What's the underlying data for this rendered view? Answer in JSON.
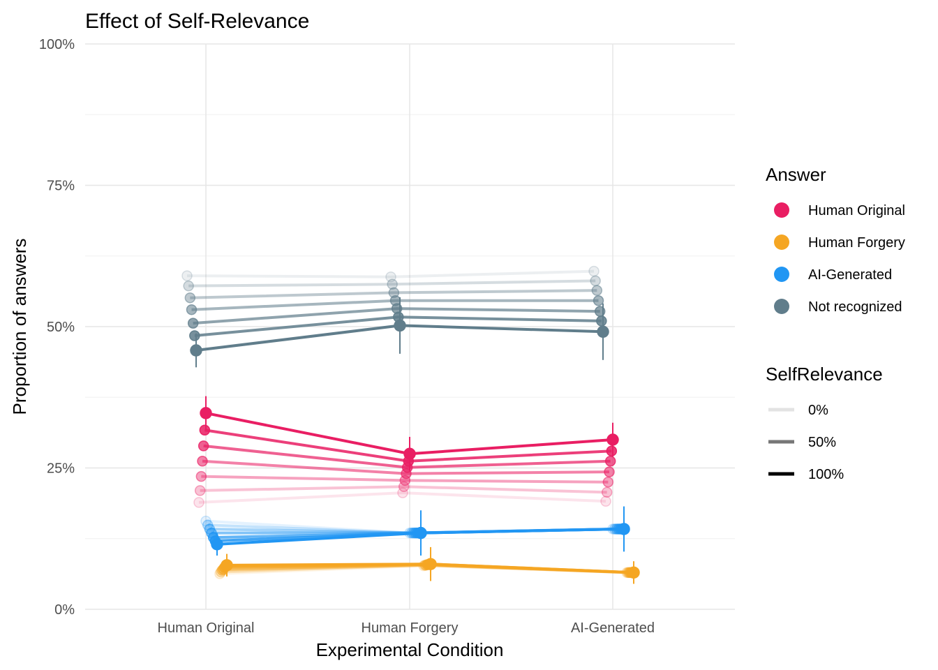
{
  "chart_data": {
    "type": "line",
    "title": "Effect of Self-Relevance",
    "xlabel": "Experimental Condition",
    "ylabel": "Proportion of answers",
    "categories": [
      "Human Original",
      "Human Forgery",
      "AI-Generated"
    ],
    "ylim": [
      0,
      1
    ],
    "yticks": [
      0,
      0.25,
      0.5,
      0.75,
      1.0
    ],
    "ytick_labels": [
      "0%",
      "25%",
      "50%",
      "75%",
      "100%"
    ],
    "grid": true,
    "self_relevance_levels": [
      0,
      0.1667,
      0.3333,
      0.5,
      0.6667,
      0.8333,
      1.0
    ],
    "series": [
      {
        "name": "Human Original",
        "color": "#E91E63",
        "values_by_level": [
          [
            0.189,
            0.206,
            0.191
          ],
          [
            0.21,
            0.217,
            0.207
          ],
          [
            0.235,
            0.228,
            0.225
          ],
          [
            0.262,
            0.24,
            0.243
          ],
          [
            0.289,
            0.251,
            0.262
          ],
          [
            0.317,
            0.262,
            0.28
          ],
          [
            0.347,
            0.275,
            0.3
          ]
        ],
        "error_at_max_level": [
          0.03,
          0.03,
          0.03
        ]
      },
      {
        "name": "Human Forgery",
        "color": "#F5A623",
        "values_by_level": [
          [
            0.063,
            0.077,
            0.065
          ],
          [
            0.066,
            0.078,
            0.065
          ],
          [
            0.069,
            0.078,
            0.065
          ],
          [
            0.071,
            0.079,
            0.065
          ],
          [
            0.074,
            0.079,
            0.065
          ],
          [
            0.076,
            0.08,
            0.065
          ],
          [
            0.078,
            0.08,
            0.065
          ]
        ],
        "error_at_max_level": [
          0.02,
          0.03,
          0.02
        ]
      },
      {
        "name": "AI-Generated",
        "color": "#2196F3",
        "values_by_level": [
          [
            0.156,
            0.135,
            0.142
          ],
          [
            0.149,
            0.135,
            0.142
          ],
          [
            0.142,
            0.135,
            0.142
          ],
          [
            0.135,
            0.135,
            0.142
          ],
          [
            0.127,
            0.135,
            0.142
          ],
          [
            0.121,
            0.135,
            0.142
          ],
          [
            0.115,
            0.135,
            0.142
          ]
        ],
        "error_at_max_level": [
          0.02,
          0.04,
          0.04
        ]
      },
      {
        "name": "Not recognized",
        "color": "#607D8B",
        "values_by_level": [
          [
            0.59,
            0.588,
            0.598
          ],
          [
            0.572,
            0.575,
            0.581
          ],
          [
            0.551,
            0.56,
            0.564
          ],
          [
            0.53,
            0.546,
            0.546
          ],
          [
            0.506,
            0.532,
            0.527
          ],
          [
            0.484,
            0.517,
            0.51
          ],
          [
            0.458,
            0.502,
            0.491
          ]
        ],
        "error_at_max_level": [
          0.03,
          0.05,
          0.05
        ]
      }
    ],
    "legends": [
      {
        "title": "Answer",
        "position": "right",
        "entries": [
          "Human Original",
          "Human Forgery",
          "AI-Generated",
          "Not recognized"
        ],
        "colors": [
          "#E91E63",
          "#F5A623",
          "#2196F3",
          "#607D8B"
        ]
      },
      {
        "title": "SelfRelevance",
        "position": "right",
        "entries": [
          "0%",
          "50%",
          "100%"
        ],
        "shades": [
          "#e3e3e3",
          "#777777",
          "#000000"
        ]
      }
    ]
  }
}
